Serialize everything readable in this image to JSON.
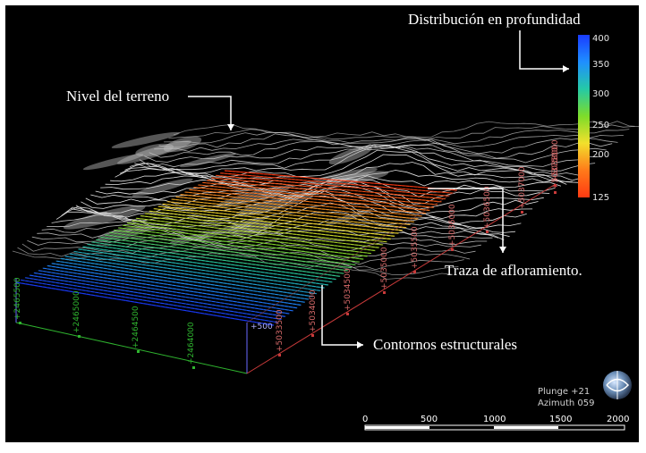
{
  "annotations": {
    "color_legend_title": "Distribución en profundidad",
    "ground_level": "Nivel del terreno",
    "outcrop_trace": "Traza de afloramiento.",
    "structural_contours": "Contornos estructurales"
  },
  "colorbar": {
    "ticks": [
      "400",
      "350",
      "300",
      "250",
      "200",
      "125"
    ],
    "colors": [
      "#1a3cff",
      "#1f8fff",
      "#25c9a6",
      "#7ddc2a",
      "#f2e02c",
      "#ff7a1a",
      "#ff3a12"
    ]
  },
  "axes": {
    "left_labels": [
      "+2465500",
      "+2465000",
      "+2464500",
      "+2464000"
    ],
    "front_labels": [
      "+5033500",
      "+5034000",
      "+5034500",
      "+5035000",
      "+5035500",
      "+5036000",
      "+5036500",
      "+5037000",
      "+5037500",
      "+5038000"
    ],
    "vertical_label": "+500",
    "left_axis_color": "#2fb52f",
    "front_axis_color": "#c93a3a"
  },
  "view_info": {
    "plunge": "Plunge +21",
    "azimuth": "Azimuth 059"
  },
  "scale_bar": {
    "labels": [
      "0",
      "500",
      "1000",
      "1500",
      "2000"
    ]
  }
}
